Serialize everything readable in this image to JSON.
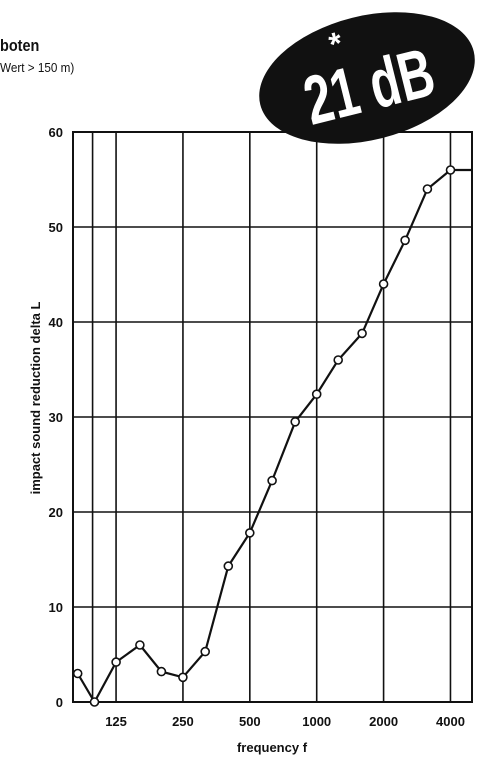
{
  "header": {
    "title": "boten",
    "subtitle": "Wert > 150 m)"
  },
  "badge": {
    "star": "*",
    "text": "21 dB",
    "color": "#111111"
  },
  "chart_data": {
    "type": "line",
    "xlabel": "frequency f",
    "ylabel": "impact sound reduction delta L",
    "ylim": [
      0,
      60
    ],
    "y_ticks": [
      0,
      10,
      20,
      30,
      40,
      50,
      60
    ],
    "x_ticks": [
      {
        "label": "125",
        "value": 125
      },
      {
        "label": "250",
        "value": 250
      },
      {
        "label": "500",
        "value": 500
      },
      {
        "label": "1000",
        "value": 1000
      },
      {
        "label": "2000",
        "value": 2000
      },
      {
        "label": "4000",
        "value": 4000
      }
    ],
    "x_scale": "log",
    "xlim": [
      80,
      5000
    ],
    "grid": true,
    "series": [
      {
        "x": [
          84,
          100,
          125,
          160,
          200,
          250,
          315,
          400,
          500,
          630,
          800,
          1000,
          1250,
          1600,
          2000,
          2500,
          3150,
          4000,
          5000
        ],
        "values": [
          3,
          0,
          4.2,
          6,
          3.2,
          2.6,
          5.3,
          14.3,
          17.8,
          23.3,
          29.5,
          32.4,
          36,
          38.8,
          44,
          48.6,
          54,
          56,
          56
        ]
      }
    ]
  }
}
